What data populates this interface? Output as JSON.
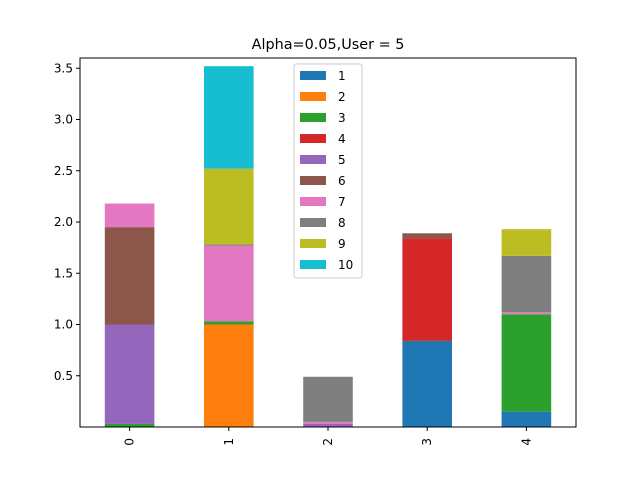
{
  "chart_data": {
    "type": "bar",
    "stacked": true,
    "title": "Alpha=0.05,User = 5",
    "xlabel": "",
    "ylabel": "",
    "categories": [
      "0",
      "1",
      "2",
      "3",
      "4"
    ],
    "x_tick_rotation": 90,
    "y_ticks": [
      0.5,
      1.0,
      1.5,
      2.0,
      2.5,
      3.0,
      3.5
    ],
    "y_tick_labels": [
      "0.5",
      "1.0",
      "1.5",
      "2.0",
      "2.5",
      "3.0",
      "3.5"
    ],
    "ylim": [
      0.0,
      3.6
    ],
    "legend_position": "top-center",
    "series": [
      {
        "name": "1",
        "color": "#1f77b4",
        "values": [
          0.0,
          0.0,
          0.0,
          0.84,
          0.15
        ]
      },
      {
        "name": "2",
        "color": "#ff7f0e",
        "values": [
          0.0,
          1.0,
          0.0,
          0.0,
          0.0
        ]
      },
      {
        "name": "3",
        "color": "#2ca02c",
        "values": [
          0.03,
          0.03,
          0.0,
          0.0,
          0.95
        ]
      },
      {
        "name": "4",
        "color": "#d62728",
        "values": [
          0.0,
          0.0,
          0.0,
          1.0,
          0.0
        ]
      },
      {
        "name": "5",
        "color": "#9467bd",
        "values": [
          0.97,
          0.0,
          0.03,
          0.0,
          0.0
        ]
      },
      {
        "name": "6",
        "color": "#8c564b",
        "values": [
          0.95,
          0.0,
          0.0,
          0.05,
          0.0
        ]
      },
      {
        "name": "7",
        "color": "#e377c2",
        "values": [
          0.23,
          0.74,
          0.02,
          0.0,
          0.02
        ]
      },
      {
        "name": "8",
        "color": "#7f7f7f",
        "values": [
          0.0,
          0.01,
          0.44,
          0.0,
          0.55
        ]
      },
      {
        "name": "9",
        "color": "#bcbd22",
        "values": [
          0.0,
          0.74,
          0.0,
          0.0,
          0.26
        ]
      },
      {
        "name": "10",
        "color": "#17becf",
        "values": [
          0.0,
          1.0,
          0.0,
          0.0,
          0.0
        ]
      }
    ]
  }
}
